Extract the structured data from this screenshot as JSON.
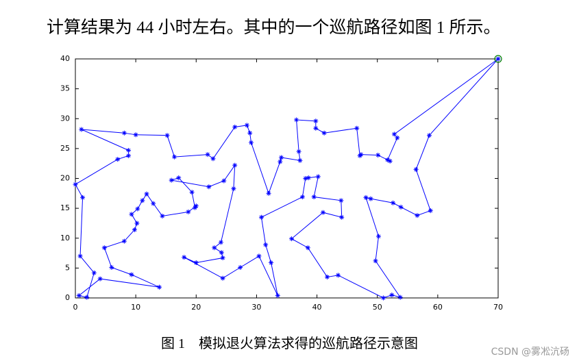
{
  "body_text": "计算结果为 44 小时左右。其中的一个巡航路径如图 1 所示。",
  "chart_data": {
    "type": "line",
    "color": "#0000ff",
    "x": [
      70,
      52.8,
      53.3,
      51.7,
      52.1,
      50.1,
      47.3,
      47.1,
      46.6,
      41.2,
      39.8,
      39.8,
      36.6,
      37.0,
      37.2,
      34.1,
      33.9,
      32.0,
      29.1,
      28.9,
      28.4,
      26.4,
      22.8,
      21.9,
      16.4,
      15.2,
      10.0,
      8.1,
      1.0,
      8.8,
      8.8,
      7.0,
      0,
      1.2,
      0.8,
      3.1,
      1.9,
      0.6,
      4.1,
      13.9,
      9.3,
      6.0,
      4.8,
      8.1,
      9.8,
      10.2,
      9.3,
      10.3,
      11.1,
      11.8,
      12.9,
      14.4,
      18.7,
      20.0,
      19.8,
      19.3,
      17.1,
      15.9,
      22.1,
      24.6,
      26.4,
      26.2,
      24.1,
      23.0,
      24.2,
      24.4,
      20.0,
      18.0,
      24.4,
      27.3,
      30.4,
      33.5,
      32.4,
      31.5,
      30.8,
      37.6,
      38.1,
      38.6,
      40.2,
      39.5,
      44.0,
      44.1,
      41.0,
      35.8,
      38.5,
      41.7,
      43.5,
      51.0,
      52.4,
      53.8,
      49.7,
      50.2,
      48.1,
      48.9,
      52.6,
      53.9,
      56.6,
      58.8,
      56.4,
      58.6,
      70
    ],
    "values": [
      40,
      27.4,
      26.8,
      23.1,
      22.9,
      23.9,
      24.0,
      23.8,
      28.4,
      27.6,
      28.4,
      29.6,
      29.8,
      24.5,
      23.0,
      23.5,
      22.8,
      17.5,
      26.0,
      27.6,
      28.9,
      28.6,
      23.3,
      24.0,
      23.6,
      27.2,
      27.3,
      27.6,
      28.2,
      24.7,
      23.8,
      23.2,
      19.0,
      16.8,
      7.0,
      4.2,
      0.1,
      0.4,
      3.2,
      1.8,
      3.9,
      5.1,
      8.4,
      9.5,
      11.4,
      12.5,
      14.0,
      14.9,
      16.3,
      17.4,
      15.8,
      13.7,
      14.4,
      15.4,
      15.1,
      17.7,
      20.1,
      19.7,
      18.6,
      19.6,
      22.2,
      18.3,
      9.3,
      8.4,
      7.6,
      6.7,
      5.9,
      6.8,
      3.3,
      5.1,
      7.0,
      0.4,
      5.9,
      8.9,
      13.5,
      16.9,
      20.0,
      20.1,
      20.3,
      16.9,
      16.3,
      13.5,
      14.3,
      9.9,
      8.4,
      3.5,
      3.8,
      0.0,
      0.5,
      0.1,
      6.2,
      10.3,
      16.8,
      16.6,
      15.9,
      15.2,
      13.8,
      14.6,
      21.5,
      27.2,
      40
    ],
    "xlim": [
      0,
      70
    ],
    "ylim": [
      0,
      40
    ],
    "xticks": [
      0,
      10,
      20,
      30,
      40,
      50,
      60,
      70
    ],
    "yticks": [
      0,
      5,
      10,
      15,
      20,
      25,
      30,
      35,
      40
    ]
  },
  "caption": "图 1　模拟退火算法求得的巡航路径示意图",
  "watermark": "CSDN @雾凇沆砀"
}
